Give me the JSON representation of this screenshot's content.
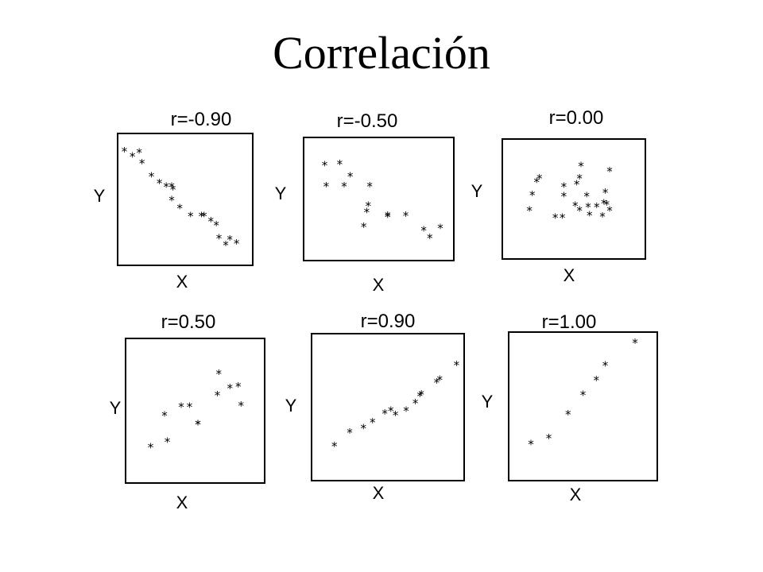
{
  "title": "Correlación",
  "chart_data": [
    {
      "type": "scatter",
      "title": "r=-0.90",
      "xlabel": "X",
      "ylabel": "Y",
      "xlim": [
        0,
        100
      ],
      "ylim": [
        0,
        100
      ],
      "x": [
        5,
        11,
        16,
        18,
        25,
        31,
        36,
        40,
        41,
        40,
        46,
        54,
        62,
        64,
        69,
        73,
        75,
        80,
        83,
        88
      ],
      "y": [
        88,
        84,
        87,
        79,
        69,
        64,
        61,
        61,
        59,
        51,
        45,
        39,
        39,
        39,
        35,
        32,
        22,
        17,
        21,
        18
      ]
    },
    {
      "type": "scatter",
      "title": "r=-0.50",
      "xlabel": "X",
      "ylabel": "Y",
      "xlim": [
        0,
        100
      ],
      "ylim": [
        0,
        100
      ],
      "x": [
        14,
        24,
        15,
        27,
        31,
        44,
        43,
        42,
        40,
        56,
        56,
        68,
        84,
        80,
        91
      ],
      "y": [
        79,
        80,
        62,
        62,
        70,
        62,
        46,
        41,
        29,
        38,
        37,
        38,
        20,
        26,
        28
      ]
    },
    {
      "type": "scatter",
      "title": "r=0.00",
      "xlabel": "X",
      "ylabel": "Y",
      "xlim": [
        0,
        100
      ],
      "ylim": [
        0,
        100
      ],
      "x": [
        24,
        26,
        21,
        19,
        43,
        43,
        54,
        52,
        55,
        72,
        73,
        71,
        75,
        75,
        70,
        54,
        37,
        42,
        51,
        60,
        66,
        61,
        59
      ],
      "y": [
        66,
        69,
        55,
        42,
        62,
        54,
        69,
        64,
        79,
        57,
        47,
        48,
        75,
        42,
        37,
        42,
        36,
        36,
        46,
        45,
        45,
        38,
        54
      ]
    },
    {
      "type": "scatter",
      "title": "r=0.50",
      "xlabel": "X",
      "ylabel": "Y",
      "xlim": [
        0,
        100
      ],
      "ylim": [
        0,
        100
      ],
      "x": [
        18,
        28,
        30,
        46,
        40,
        52,
        52,
        67,
        66,
        83,
        75,
        81
      ],
      "y": [
        26,
        48,
        30,
        54,
        54,
        42,
        42,
        77,
        62,
        55,
        67,
        68
      ]
    },
    {
      "type": "scatter",
      "title": "r=0.90",
      "xlabel": "X",
      "ylabel": "Y",
      "xlim": [
        0,
        100
      ],
      "ylim": [
        0,
        100
      ],
      "x": [
        15,
        25,
        34,
        40,
        48,
        52,
        55,
        62,
        68,
        71,
        72,
        82,
        84,
        95
      ],
      "y": [
        25,
        34,
        37,
        41,
        47,
        49,
        46,
        49,
        54,
        59,
        60,
        68,
        70,
        80
      ]
    },
    {
      "type": "scatter",
      "title": "r=1.00",
      "xlabel": "X",
      "ylabel": "Y",
      "xlim": [
        0,
        100
      ],
      "ylim": [
        0,
        100
      ],
      "x": [
        15,
        27,
        40,
        50,
        59,
        65,
        85
      ],
      "y": [
        26,
        30,
        46,
        59,
        69,
        79,
        94
      ]
    }
  ]
}
